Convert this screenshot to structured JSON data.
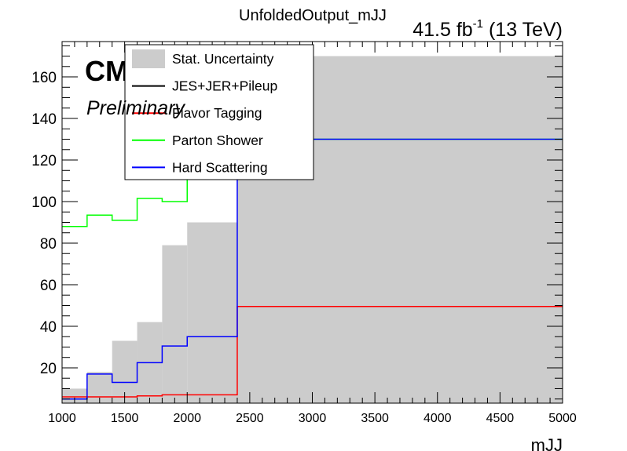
{
  "chart_data": {
    "type": "histogram",
    "title": "UnfoldedOutput_mJJ",
    "lumi_label": {
      "main": "41.5 fb",
      "sup": "-1",
      "tail": " (13 TeV)"
    },
    "cms_label": "CMS",
    "cms_sublabel": "Preliminary",
    "xlabel": "mJJ",
    "ylabel": "",
    "xlim": [
      1000,
      5000
    ],
    "ylim": [
      3,
      177
    ],
    "xticks": [
      1000,
      1500,
      2000,
      2500,
      3000,
      3500,
      4000,
      4500,
      5000
    ],
    "yticks": [
      20,
      40,
      60,
      80,
      100,
      120,
      140,
      160
    ],
    "bin_edges": [
      1000,
      1200,
      1400,
      1600,
      1800,
      2000,
      2400,
      5000
    ],
    "legend_position": "top-left",
    "series": [
      {
        "name": "Stat. Uncertainty",
        "style": "fill",
        "color": "#cccccc",
        "values": [
          10,
          18,
          33,
          42,
          79,
          90,
          170
        ]
      },
      {
        "name": "JES+JER+Pileup",
        "style": "line",
        "color": "#000000",
        "values": []
      },
      {
        "name": "Flavor Tagging",
        "style": "line",
        "color": "#ff0000",
        "values": [
          6,
          6,
          6,
          6.5,
          7,
          7,
          49.5
        ]
      },
      {
        "name": "Parton Shower",
        "style": "line",
        "color": "#00ff00",
        "values": [
          88,
          93.5,
          91,
          101.5,
          100,
          130,
          130
        ]
      },
      {
        "name": "Hard Scattering",
        "style": "line",
        "color": "#0000ff",
        "values": [
          5,
          17,
          13,
          22.5,
          30.5,
          35,
          130
        ]
      }
    ]
  }
}
